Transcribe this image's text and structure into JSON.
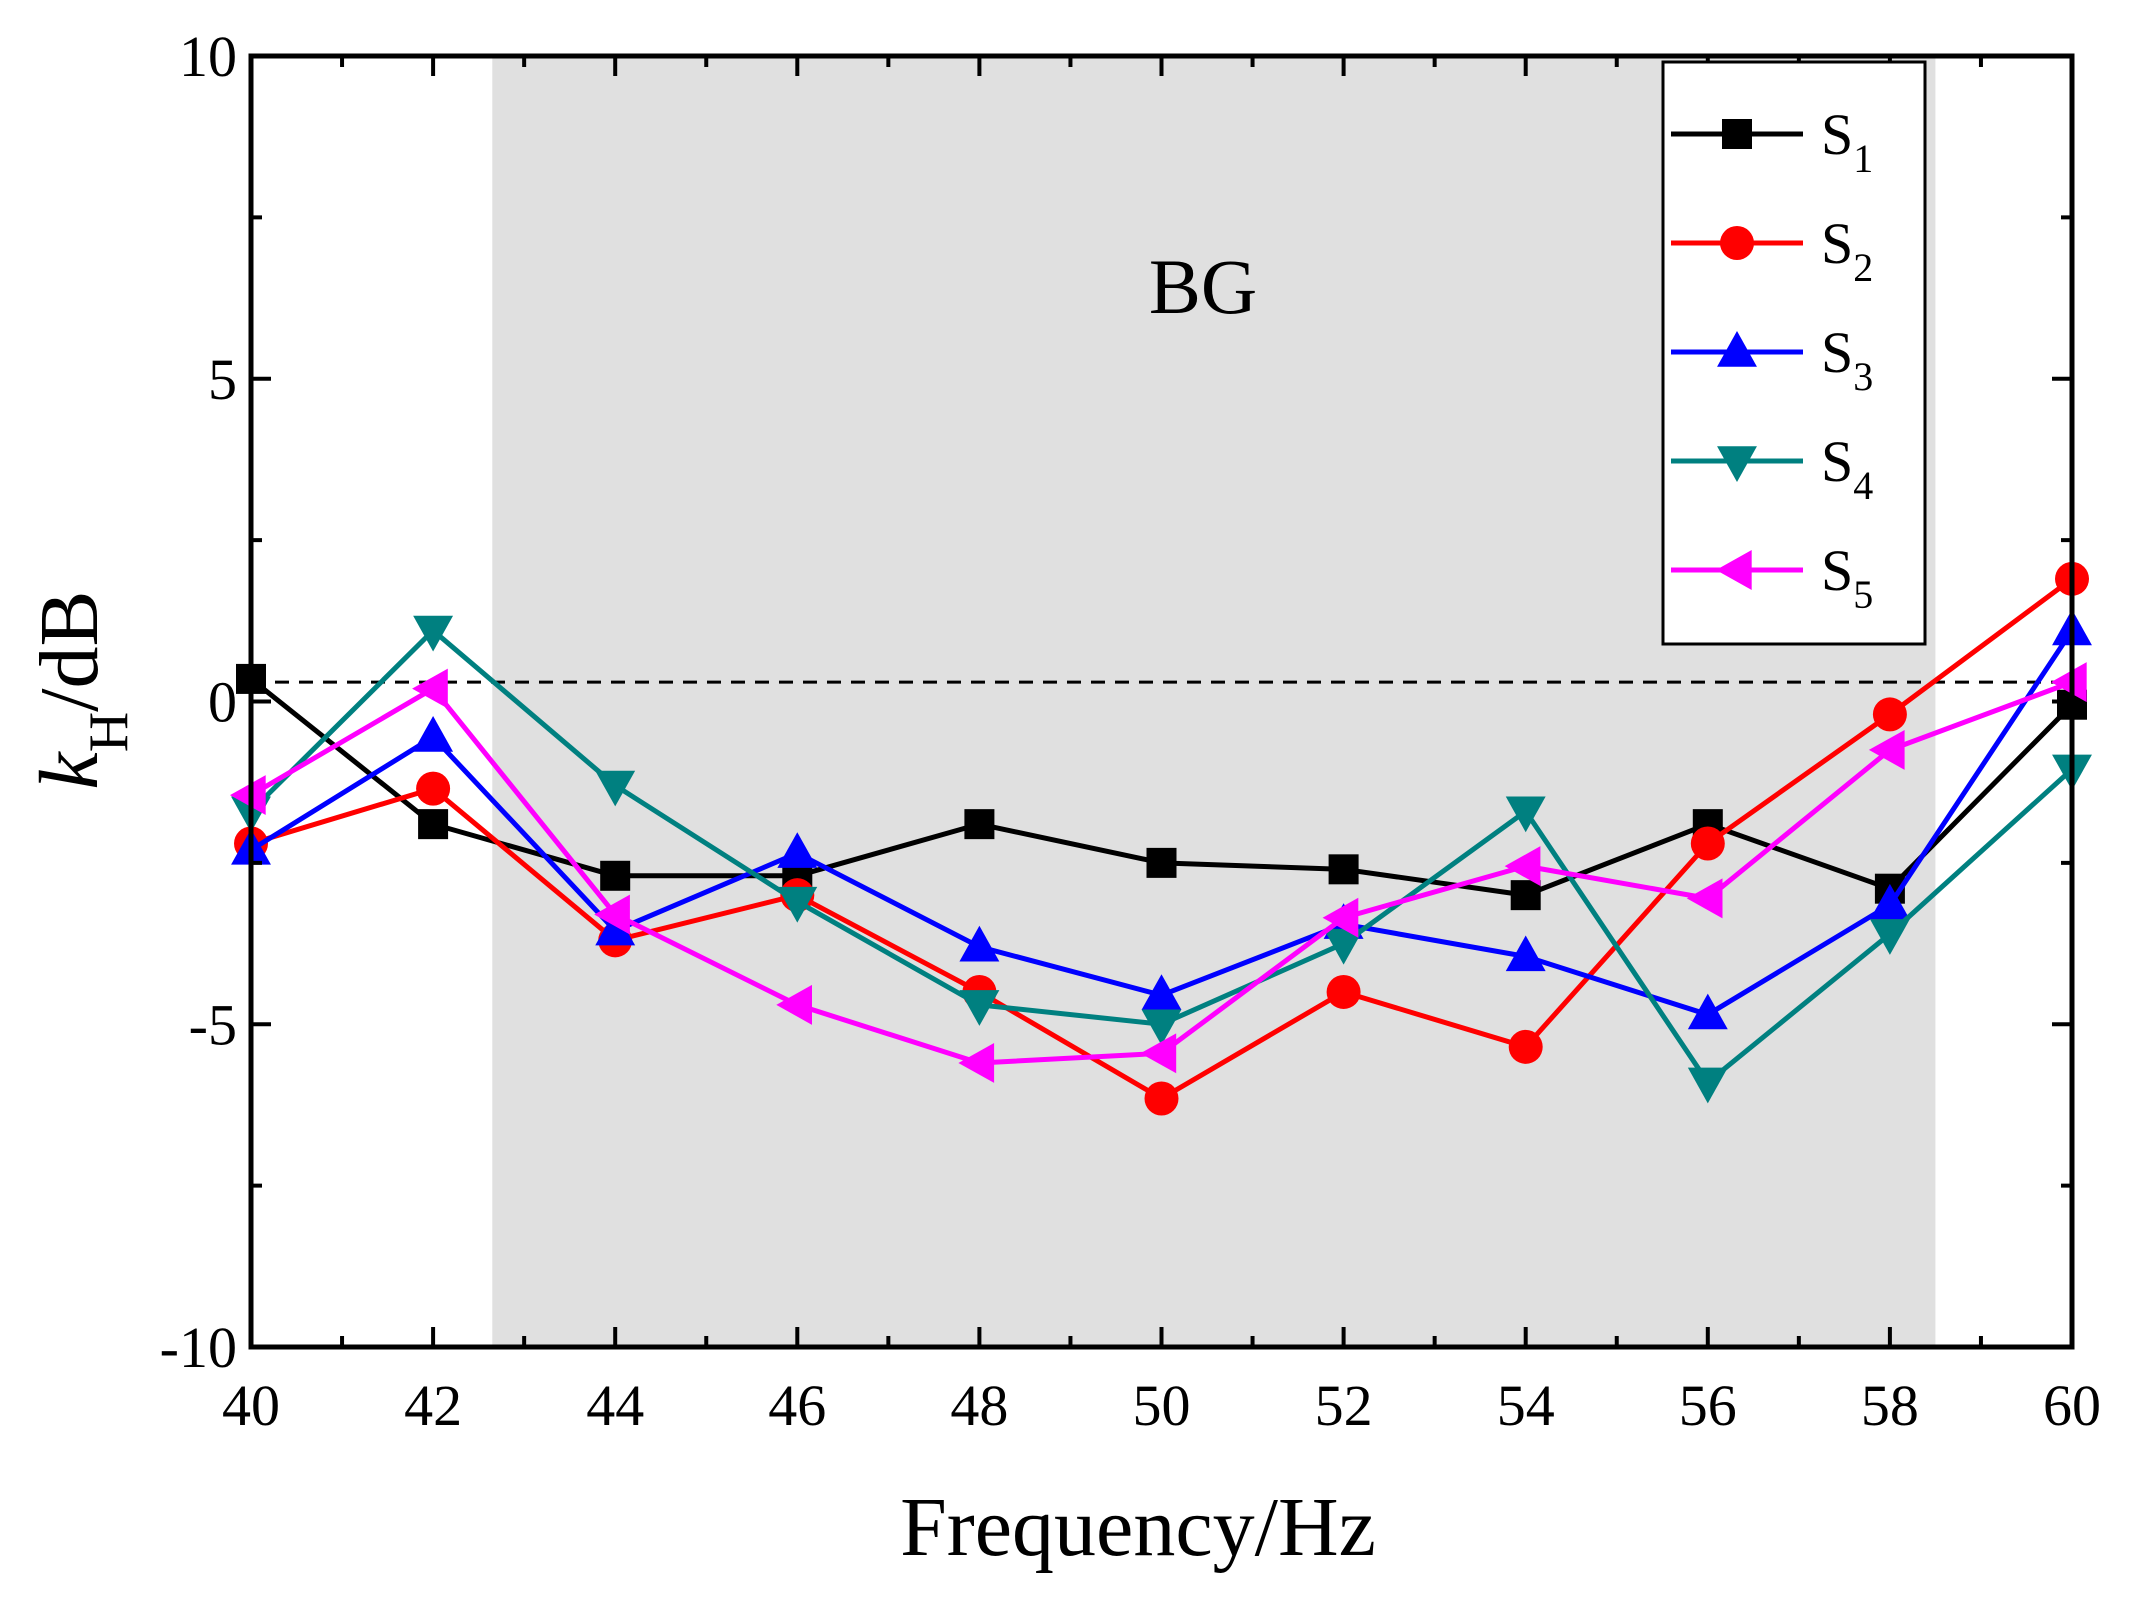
{
  "chart_data": {
    "type": "line",
    "xlabel": "Frequency/Hz",
    "ylabel": {
      "main": "k",
      "sub": "H",
      "suffix": "/dB"
    },
    "xlim": [
      40,
      60
    ],
    "ylim": [
      -10,
      10
    ],
    "xticks": [
      40,
      42,
      44,
      46,
      48,
      50,
      52,
      54,
      56,
      58,
      60
    ],
    "yticks": [
      -10,
      -5,
      0,
      5,
      10
    ],
    "ytick_labels": [
      "-10",
      "-5",
      "0",
      "5",
      "10"
    ],
    "band_gap": {
      "label": "BG",
      "x_start": 42.65,
      "x_end": 58.5,
      "color": "#e0e0e0"
    },
    "reference_line": {
      "y": 0.3,
      "style": "dashed",
      "color": "#000000"
    },
    "x": [
      40,
      42,
      44,
      46,
      48,
      50,
      52,
      54,
      56,
      58,
      60
    ],
    "series": [
      {
        "name": "S",
        "sub": "1",
        "color": "#000000",
        "marker": "square",
        "values": [
          0.35,
          -1.9,
          -2.7,
          -2.7,
          -1.9,
          -2.5,
          -2.6,
          -3.0,
          -1.9,
          -2.9,
          -0.05
        ]
      },
      {
        "name": "S",
        "sub": "2",
        "color": "#ff0000",
        "marker": "circle",
        "values": [
          -2.2,
          -1.35,
          -3.7,
          -3.0,
          -4.5,
          -6.15,
          -4.5,
          -5.35,
          -2.2,
          -0.2,
          1.9
        ]
      },
      {
        "name": "S",
        "sub": "3",
        "color": "#0000ff",
        "marker": "triangle-up",
        "values": [
          -2.3,
          -0.55,
          -3.55,
          -2.35,
          -3.8,
          -4.55,
          -3.45,
          -3.95,
          -4.85,
          -3.15,
          1.1
        ]
      },
      {
        "name": "S",
        "sub": "4",
        "color": "#008080",
        "marker": "triangle-down",
        "values": [
          -1.7,
          1.1,
          -1.3,
          -3.1,
          -4.7,
          -5.0,
          -3.75,
          -1.7,
          -5.9,
          -3.6,
          -1.05
        ]
      },
      {
        "name": "S",
        "sub": "5",
        "color": "#ff00ff",
        "marker": "triangle-left",
        "values": [
          -1.45,
          0.2,
          -3.3,
          -4.7,
          -5.6,
          -5.45,
          -3.35,
          -2.55,
          -3.05,
          -0.75,
          0.3
        ]
      }
    ],
    "legend": {
      "placement": "top-right"
    }
  }
}
